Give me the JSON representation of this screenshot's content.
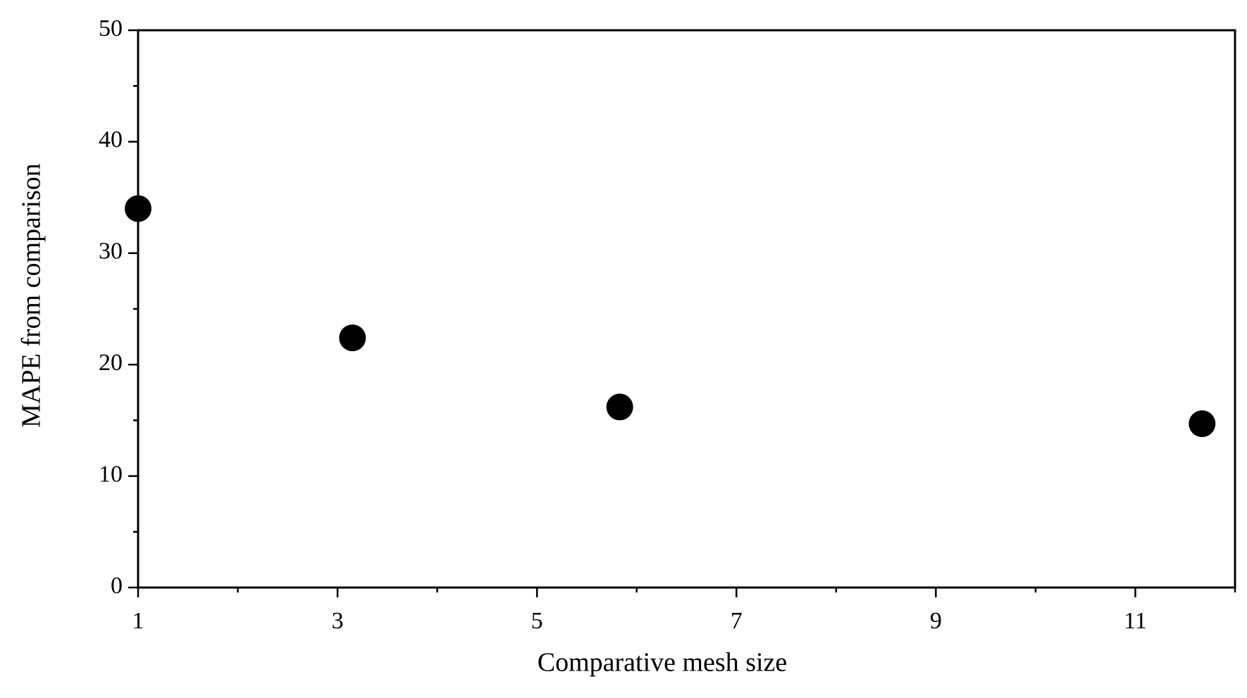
{
  "chart_data": {
    "type": "scatter",
    "x_label": "Comparative mesh size",
    "y_label": "MAPE from comparison",
    "series": [
      {
        "color": "#000000",
        "x": [
          1,
          3.15,
          5.83,
          11.67
        ],
        "values": [
          34.0,
          22.4,
          16.2,
          14.7
        ]
      }
    ],
    "xlim": [
      1,
      12
    ],
    "xticks": [
      1,
      3,
      5,
      7,
      9,
      11
    ],
    "x_minor_ticks": [
      2,
      4,
      6,
      8,
      10,
      12
    ],
    "ylim": [
      0,
      50
    ],
    "yticks": [
      0,
      10,
      20,
      30,
      40,
      50
    ],
    "y_minor_ticks": [
      5,
      15,
      25,
      35,
      45
    ],
    "grid": false
  }
}
